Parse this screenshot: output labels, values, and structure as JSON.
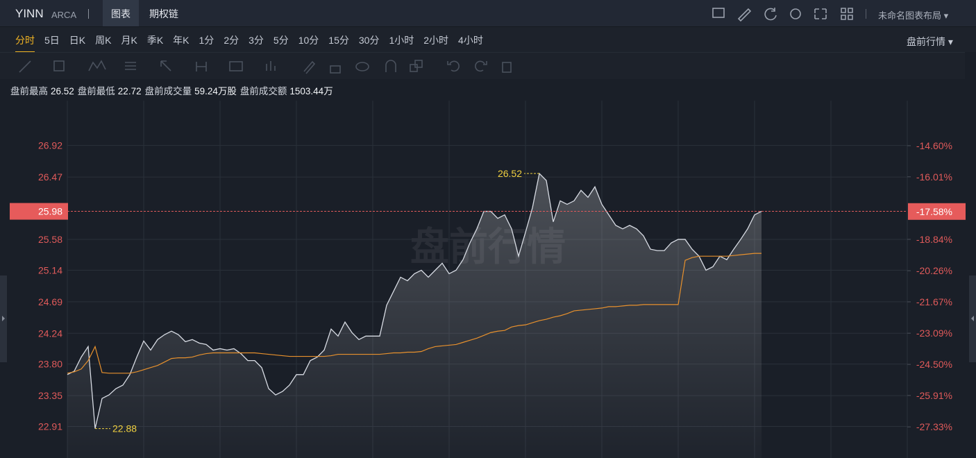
{
  "header": {
    "symbol": "YINN",
    "exchange": "ARCA",
    "tabs": [
      "图表",
      "期权链"
    ],
    "layout_name": "未命名图表布局"
  },
  "timeframes": [
    "分时",
    "5日",
    "日K",
    "周K",
    "月K",
    "季K",
    "年K",
    "1分",
    "2分",
    "3分",
    "5分",
    "10分",
    "15分",
    "30分",
    "1小时",
    "2小时",
    "4小时"
  ],
  "session_menu": "盘前行情",
  "stats": [
    {
      "label": "盘前最高",
      "value": 26.52
    },
    {
      "label": "盘前最低",
      "value": 22.72
    },
    {
      "label": "盘前成交量",
      "value": "59.24万股"
    },
    {
      "label": "盘前成交额",
      "value": "1503.44万"
    }
  ],
  "chart_data": {
    "type": "line",
    "watermark": "盘前行情",
    "ylim": [
      22.46,
      27.56
    ],
    "yticks": [
      26.92,
      26.47,
      {
        "value": 25.58,
        "label": "25.58"
      },
      25.14,
      24.69,
      24.24,
      {
        "value": 23.8,
        "label": "23.80"
      },
      23.35,
      22.91
    ],
    "y2lim": [
      -28.74,
      -12.56
    ],
    "y2ticks": [
      {
        "value": -14.6,
        "label": "-14.60%"
      },
      {
        "value": -16.01,
        "label": "-16.01%"
      },
      {
        "value": -18.84,
        "label": "-18.84%"
      },
      {
        "value": -20.26,
        "label": "-20.26%"
      },
      {
        "value": -21.67,
        "label": "-21.67%"
      },
      {
        "value": -23.09,
        "label": "-23.09%"
      },
      {
        "value": -24.5,
        "label": "-24.50%"
      },
      {
        "value": -25.91,
        "label": "-25.91%"
      },
      {
        "value": -27.33,
        "label": "-27.33%"
      }
    ],
    "current": 25.98,
    "current_pct": {
      "value": -17.58,
      "label": "-17.58%"
    },
    "max_label": 26.52,
    "min_label": 22.88,
    "grid": true,
    "series": [
      {
        "color": "#d8dce4",
        "values": [
          23.65,
          23.7,
          23.9,
          24.05,
          22.88,
          23.31,
          23.36,
          23.45,
          23.5,
          23.65,
          23.9,
          24.13,
          24.0,
          24.15,
          24.22,
          24.27,
          24.22,
          24.12,
          24.15,
          24.1,
          24.08,
          24.0,
          24.02,
          24.0,
          24.02,
          23.95,
          23.85,
          23.85,
          23.75,
          23.45,
          23.36,
          23.41,
          23.5,
          23.65,
          23.65,
          23.85,
          23.9,
          24.0,
          24.3,
          24.2,
          24.4,
          24.25,
          24.15,
          24.2,
          24.2,
          24.2,
          24.64,
          24.84,
          25.04,
          24.99,
          25.09,
          25.14,
          25.04,
          25.14,
          25.24,
          25.09,
          25.14,
          25.29,
          25.53,
          25.73,
          25.98,
          25.98,
          25.88,
          25.93,
          25.73,
          25.34,
          25.68,
          26.03,
          26.52,
          26.42,
          25.83,
          26.13,
          26.08,
          26.13,
          26.28,
          26.18,
          26.33,
          26.08,
          25.93,
          25.78,
          25.73,
          25.78,
          25.73,
          25.63,
          25.44,
          25.42,
          25.42,
          25.53,
          25.58,
          25.58,
          25.44,
          25.34,
          25.14,
          25.19,
          25.34,
          25.29,
          25.44,
          25.58,
          25.73,
          25.93,
          25.98
        ]
      },
      {
        "color": "#e8912d",
        "values": [
          23.67,
          23.69,
          23.73,
          23.85,
          24.05,
          23.68,
          23.67,
          23.67,
          23.67,
          23.67,
          23.69,
          23.72,
          23.75,
          23.78,
          23.83,
          23.88,
          23.89,
          23.89,
          23.9,
          23.93,
          23.95,
          23.96,
          23.96,
          23.96,
          23.96,
          23.96,
          23.96,
          23.96,
          23.95,
          23.94,
          23.93,
          23.92,
          23.91,
          23.91,
          23.91,
          23.91,
          23.91,
          23.91,
          23.92,
          23.94,
          23.94,
          23.94,
          23.94,
          23.94,
          23.94,
          23.94,
          23.95,
          23.96,
          23.96,
          23.97,
          23.97,
          23.98,
          24.02,
          24.05,
          24.06,
          24.07,
          24.08,
          24.11,
          24.14,
          24.17,
          24.21,
          24.25,
          24.27,
          24.28,
          24.33,
          24.35,
          24.36,
          24.39,
          24.42,
          24.44,
          24.47,
          24.49,
          24.52,
          24.56,
          24.57,
          24.58,
          24.59,
          24.6,
          24.62,
          24.62,
          24.63,
          24.64,
          24.64,
          24.65,
          24.65,
          24.65,
          24.65,
          24.65,
          24.65,
          25.28,
          25.32,
          25.34,
          25.34,
          25.34,
          25.34,
          25.34,
          25.35,
          25.36,
          25.37,
          25.38,
          25.38
        ]
      }
    ]
  }
}
